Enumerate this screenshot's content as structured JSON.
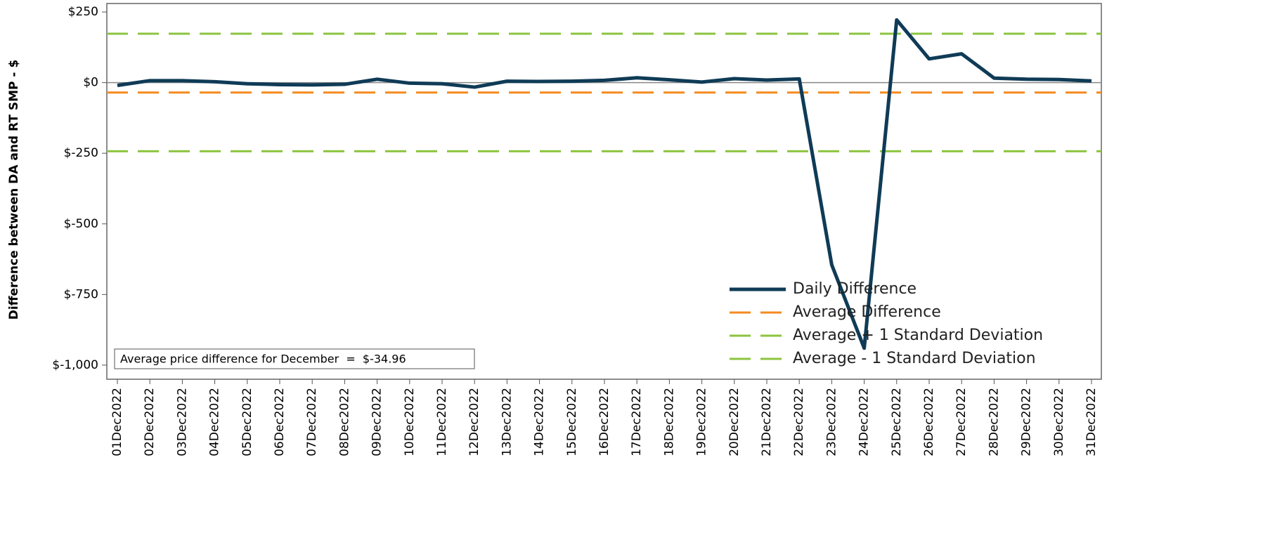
{
  "chart_data": {
    "type": "line",
    "y_axis_label": "Difference between DA and RT SMP - $",
    "categories": [
      "01Dec2022",
      "02Dec2022",
      "03Dec2022",
      "04Dec2022",
      "05Dec2022",
      "06Dec2022",
      "07Dec2022",
      "08Dec2022",
      "09Dec2022",
      "10Dec2022",
      "11Dec2022",
      "12Dec2022",
      "13Dec2022",
      "14Dec2022",
      "15Dec2022",
      "16Dec2022",
      "17Dec2022",
      "18Dec2022",
      "19Dec2022",
      "20Dec2022",
      "21Dec2022",
      "22Dec2022",
      "23Dec2022",
      "24Dec2022",
      "25Dec2022",
      "26Dec2022",
      "27Dec2022",
      "28Dec2022",
      "29Dec2022",
      "30Dec2022",
      "31Dec2022"
    ],
    "series": [
      {
        "name": "Daily Difference",
        "color": "#0f3b56",
        "values": [
          -10,
          7,
          7,
          3,
          -4,
          -7,
          -8,
          -6,
          12,
          -2,
          -4,
          -16,
          5,
          4,
          5,
          8,
          17,
          10,
          2,
          14,
          9,
          13,
          -645,
          -940,
          222,
          84,
          102,
          16,
          12,
          11,
          6
        ]
      }
    ],
    "reference_lines": [
      {
        "name": "Average Difference",
        "color": "#f58a1f",
        "value": -34.96
      },
      {
        "name": "Average + 1 Standard Deviation",
        "color": "#8cc43f",
        "value": 173
      },
      {
        "name": "Average - 1 Standard Deviation",
        "color": "#8cc43f",
        "value": -243
      }
    ],
    "annotation": "Average price difference for December  =  $-34.96",
    "ylim": [
      -1050,
      280
    ],
    "yticks": [
      {
        "value": 250,
        "label": "$250"
      },
      {
        "value": 0,
        "label": "$0"
      },
      {
        "value": -250,
        "label": "$-250"
      },
      {
        "value": -500,
        "label": "$-500"
      },
      {
        "value": -750,
        "label": "$-750"
      },
      {
        "value": -1000,
        "label": "$-1,000"
      }
    ],
    "legend_position": "lower right"
  }
}
